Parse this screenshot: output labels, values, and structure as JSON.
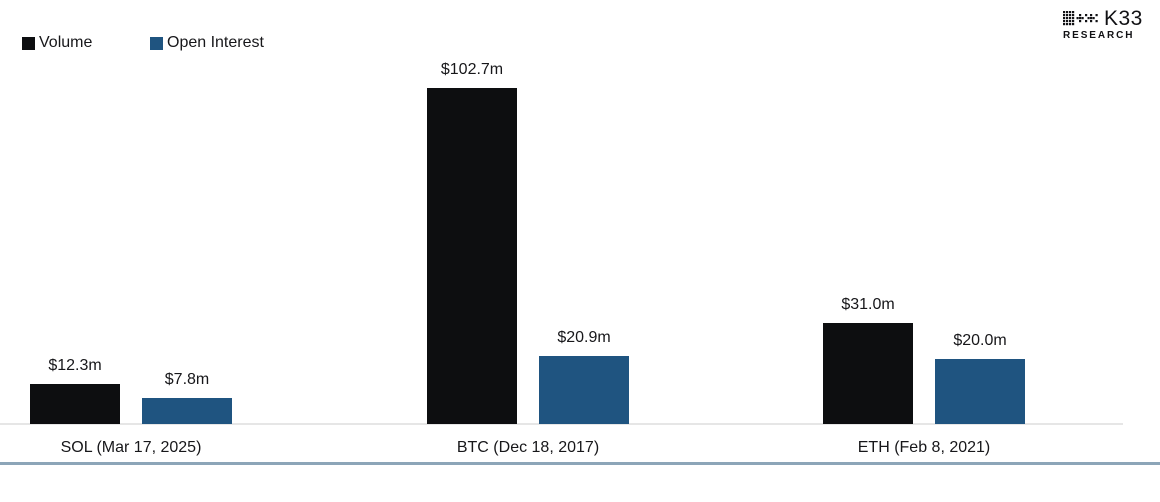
{
  "legend": {
    "items": [
      {
        "label": "Volume",
        "color": "#0d0e10",
        "swatch_icon": "square-swatch-icon"
      },
      {
        "label": "Open Interest",
        "color": "#1f5480",
        "swatch_icon": "square-swatch-icon"
      }
    ]
  },
  "logo": {
    "brand": "K33",
    "sub": "RESEARCH",
    "mark_icon": "k33-dot-grid-icon",
    "color": "#111114"
  },
  "chart_data": {
    "type": "bar",
    "title": "",
    "xlabel": "",
    "ylabel": "",
    "value_unit": "$m (USD millions)",
    "categories": [
      "SOL (Mar 17, 2025)",
      "BTC (Dec 18, 2017)",
      "ETH (Feb 8, 2021)"
    ],
    "series": [
      {
        "name": "Volume",
        "color": "#0d0e10",
        "values": [
          12.3,
          102.7,
          31.0
        ],
        "labels": [
          "$12.3m",
          "$102.7m",
          "$31.0m"
        ]
      },
      {
        "name": "Open Interest",
        "color": "#1f5480",
        "values": [
          7.8,
          20.9,
          20.0
        ],
        "labels": [
          "$7.8m",
          "$20.9m",
          "$20.0m"
        ]
      }
    ],
    "ylim": [
      0,
      102.7
    ],
    "grid": false,
    "data_labels": true,
    "legend_position": "top-left",
    "colors": {
      "axis_line": "#e6e6e6",
      "bottom_border": "#8ca5b8",
      "text": "#17171a",
      "background": "#ffffff"
    }
  }
}
